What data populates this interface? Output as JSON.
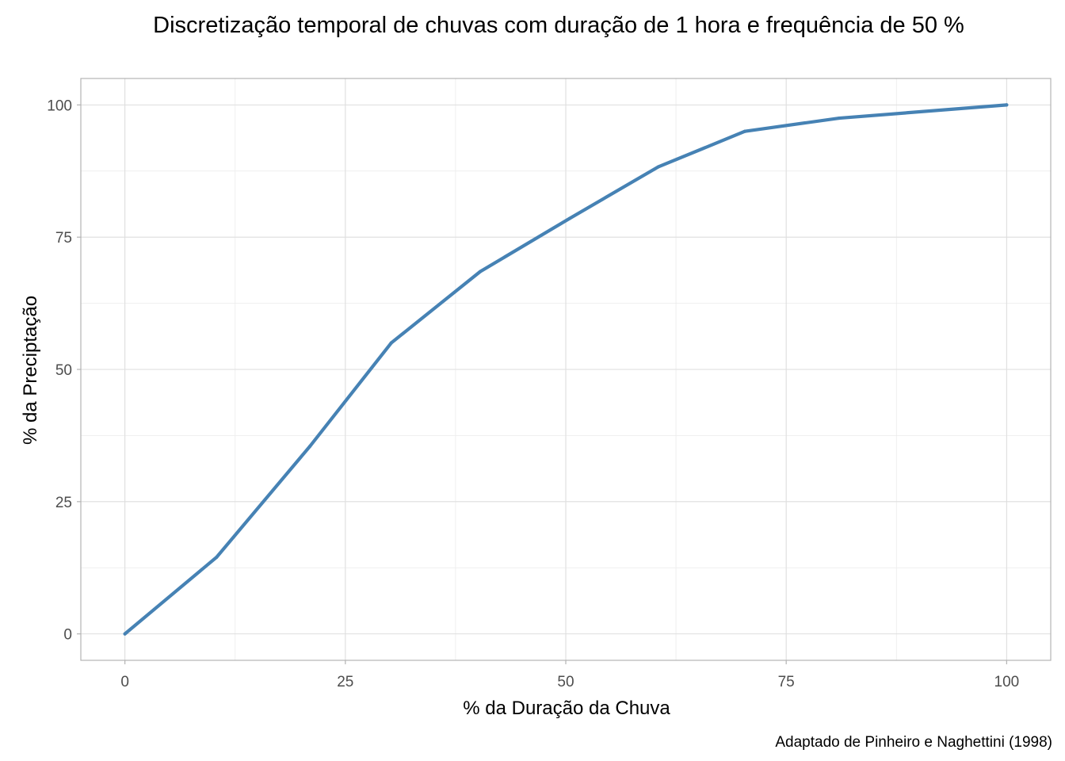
{
  "chart_data": {
    "type": "line",
    "title": "Discretização temporal de chuvas com duração de 1 hora e frequência de 50 %",
    "xlabel": "% da Duração da Chuva",
    "ylabel": "% da Preciptação",
    "caption": "Adaptado de Pinheiro e Naghettini (1998)",
    "xlim": [
      -5,
      105
    ],
    "ylim": [
      -5,
      105
    ],
    "x_ticks": [
      0,
      25,
      50,
      75,
      100
    ],
    "y_ticks": [
      0,
      25,
      50,
      75,
      100
    ],
    "x_tick_labels": [
      "0",
      "25",
      "50",
      "75",
      "100"
    ],
    "y_tick_labels": [
      "0",
      "25",
      "50",
      "75",
      "100"
    ],
    "grid": true,
    "series": [
      {
        "color": "#4682b4",
        "x": [
          0,
          10.4,
          21,
          30.2,
          40.3,
          50.4,
          60.5,
          70.3,
          81,
          100
        ],
        "y": [
          0,
          14.5,
          35.5,
          55,
          68.5,
          78.5,
          88.3,
          95,
          97.5,
          100
        ]
      }
    ]
  }
}
